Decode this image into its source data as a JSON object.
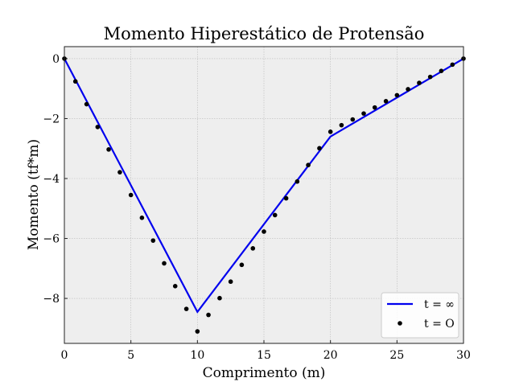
{
  "chart_data": {
    "type": "line",
    "title": "Momento Hiperestático de Protensão",
    "xlabel": "Comprimento (m)",
    "ylabel": "Momento (tf*m)",
    "xlim": [
      0,
      30
    ],
    "ylim": [
      -9.5,
      0.4
    ],
    "xticks": [
      0,
      5,
      10,
      15,
      20,
      25,
      30
    ],
    "yticks": [
      0,
      -2,
      -4,
      -6,
      -8
    ],
    "grid": true,
    "legend_position": "bottom-right",
    "colors": {
      "line": "#0000ee",
      "points": "#000000",
      "plot_bg": "#eeeeee",
      "grid": "#bbbbbb"
    },
    "series": [
      {
        "name": "t = ∞",
        "kind": "line",
        "x": [
          0,
          10,
          20,
          30
        ],
        "y": [
          0,
          -8.45,
          -2.6,
          0
        ]
      },
      {
        "name": "t = O",
        "kind": "scatter",
        "x": [
          0,
          0.83,
          1.67,
          2.5,
          3.33,
          4.17,
          5.0,
          5.83,
          6.67,
          7.5,
          8.33,
          9.17,
          10.0,
          10.83,
          11.67,
          12.5,
          13.33,
          14.17,
          15.0,
          15.83,
          16.67,
          17.5,
          18.33,
          19.17,
          20.0,
          20.83,
          21.67,
          22.5,
          23.33,
          24.17,
          25.0,
          25.83,
          26.67,
          27.5,
          28.33,
          29.17,
          30.0
        ],
        "y": [
          0,
          -0.76,
          -1.52,
          -2.28,
          -3.03,
          -3.79,
          -4.55,
          -5.31,
          -6.07,
          -6.83,
          -7.59,
          -8.35,
          -9.1,
          -8.55,
          -7.99,
          -7.44,
          -6.88,
          -6.33,
          -5.77,
          -5.22,
          -4.66,
          -4.1,
          -3.55,
          -2.99,
          -2.44,
          -2.22,
          -2.03,
          -1.83,
          -1.63,
          -1.42,
          -1.22,
          -1.02,
          -0.81,
          -0.61,
          -0.41,
          -0.2,
          0
        ]
      }
    ]
  }
}
